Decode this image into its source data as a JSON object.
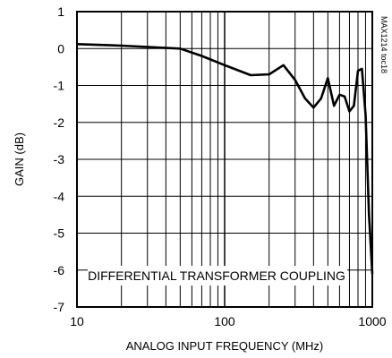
{
  "chart_data": {
    "type": "line",
    "title": "",
    "xlabel": "ANALOG INPUT FREQUENCY (MHz)",
    "ylabel": "GAIN (dB)",
    "x_scale": "log",
    "xlim": [
      10,
      1000
    ],
    "ylim": [
      -7,
      1
    ],
    "x_ticks": [
      "10",
      "100",
      "1000"
    ],
    "y_ticks": [
      "1",
      "0",
      "-1",
      "-2",
      "-3",
      "-4",
      "-5",
      "-6",
      "-7"
    ],
    "grid": true,
    "annotation": "DIFFERENTIAL TRANSFORMER COUPLING",
    "figure_code": "MAX1214 toc18",
    "series": [
      {
        "x": [
          10,
          20,
          50,
          70,
          100,
          150,
          200,
          250,
          300,
          350,
          400,
          450,
          500,
          550,
          600,
          650,
          700,
          750,
          800,
          850,
          900,
          950,
          1000
        ],
        "y": [
          0.12,
          0.08,
          0.0,
          -0.2,
          -0.45,
          -0.72,
          -0.7,
          -0.45,
          -0.85,
          -1.35,
          -1.6,
          -1.35,
          -0.8,
          -1.55,
          -1.25,
          -1.3,
          -1.7,
          -1.55,
          -0.6,
          -0.55,
          -1.8,
          -4.5,
          -6.1
        ]
      }
    ]
  }
}
